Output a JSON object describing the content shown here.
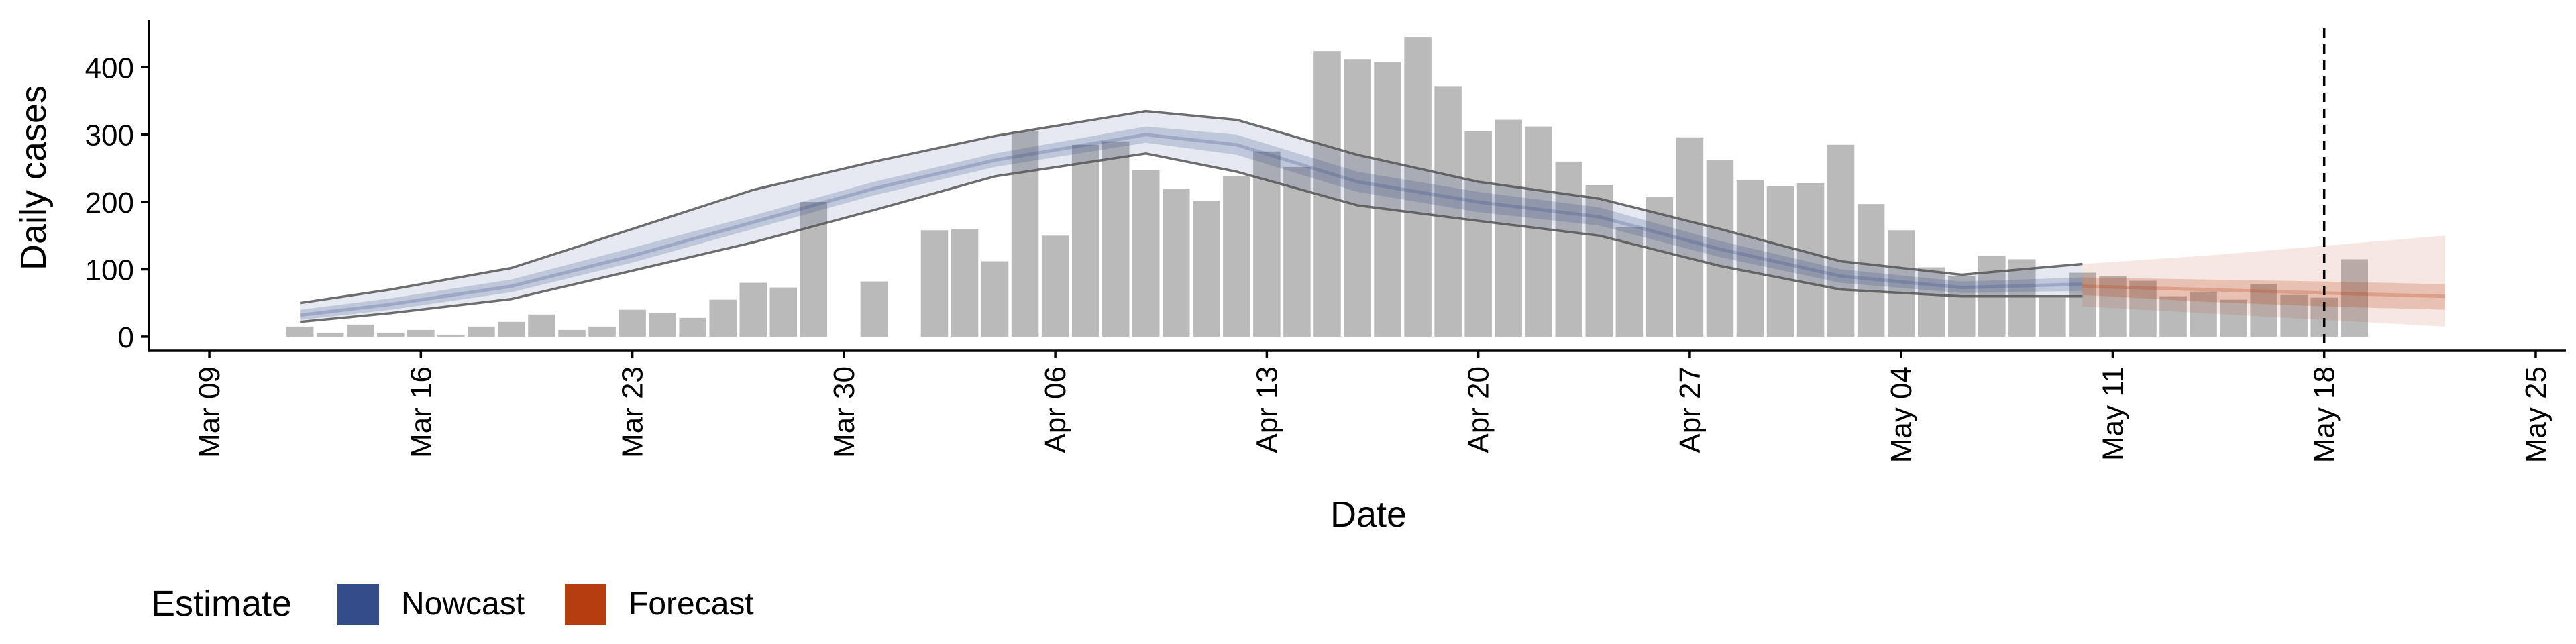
{
  "chart_data": {
    "type": "bar",
    "xlabel": "Date",
    "ylabel": "Daily cases",
    "ylim": [
      -20,
      470
    ],
    "xlim": [
      "2020-03-07",
      "2020-05-26"
    ],
    "y_ticks": [
      0,
      100,
      200,
      300,
      400
    ],
    "x_ticks": [
      {
        "date": "2020-03-09",
        "label": "Mar 09"
      },
      {
        "date": "2020-03-16",
        "label": "Mar 16"
      },
      {
        "date": "2020-03-23",
        "label": "Mar 23"
      },
      {
        "date": "2020-03-30",
        "label": "Mar 30"
      },
      {
        "date": "2020-04-06",
        "label": "Apr 06"
      },
      {
        "date": "2020-04-13",
        "label": "Apr 13"
      },
      {
        "date": "2020-04-20",
        "label": "Apr 20"
      },
      {
        "date": "2020-04-27",
        "label": "Apr 27"
      },
      {
        "date": "2020-05-04",
        "label": "May 04"
      },
      {
        "date": "2020-05-11",
        "label": "May 11"
      },
      {
        "date": "2020-05-18",
        "label": "May 18"
      },
      {
        "date": "2020-05-25",
        "label": "May 25"
      }
    ],
    "grid": false,
    "legend": {
      "title": "Estimate",
      "position": "bottom-left",
      "items": [
        {
          "label": "Nowcast",
          "color": "#354c8a"
        },
        {
          "label": "Forecast",
          "color": "#b53d0f"
        }
      ]
    },
    "reference_line_date": "2020-05-18",
    "bar_color": "#bababa",
    "bars": {
      "start_date": "2020-03-12",
      "values": [
        15,
        6,
        18,
        6,
        10,
        3,
        15,
        22,
        33,
        10,
        15,
        40,
        35,
        28,
        55,
        80,
        73,
        200,
        0,
        82,
        0,
        158,
        160,
        112,
        305,
        150,
        285,
        290,
        247,
        220,
        202,
        238,
        275,
        252,
        424,
        412,
        408,
        445,
        372,
        305,
        322,
        312,
        260,
        225,
        163,
        207,
        296,
        262,
        233,
        223,
        228,
        285,
        197,
        158,
        103,
        90,
        120,
        115,
        58,
        95,
        90,
        83,
        60,
        67,
        55,
        78,
        62,
        58,
        115
      ]
    },
    "nowcast": {
      "color": "#354c8a",
      "x": [
        "2020-03-12",
        "2020-03-15",
        "2020-03-19",
        "2020-03-23",
        "2020-03-27",
        "2020-03-31",
        "2020-04-04",
        "2020-04-09",
        "2020-04-12",
        "2020-04-16",
        "2020-04-20",
        "2020-04-24",
        "2020-04-28",
        "2020-05-02",
        "2020-05-06",
        "2020-05-10"
      ],
      "median": [
        32,
        48,
        75,
        120,
        170,
        220,
        262,
        300,
        285,
        230,
        200,
        178,
        130,
        90,
        73,
        78
      ],
      "inner_lower": [
        25,
        40,
        66,
        110,
        160,
        210,
        252,
        288,
        270,
        215,
        185,
        165,
        118,
        80,
        65,
        68
      ],
      "inner_upper": [
        40,
        57,
        85,
        132,
        180,
        230,
        272,
        312,
        300,
        245,
        215,
        192,
        142,
        100,
        82,
        88
      ],
      "outer_lower": [
        22,
        35,
        56,
        98,
        140,
        188,
        238,
        272,
        245,
        195,
        172,
        150,
        105,
        70,
        60,
        60
      ],
      "outer_upper": [
        50,
        70,
        102,
        160,
        218,
        260,
        298,
        335,
        322,
        270,
        230,
        205,
        160,
        112,
        92,
        108
      ]
    },
    "forecast": {
      "color": "#b53d0f",
      "x": [
        "2020-05-10",
        "2020-05-14",
        "2020-05-18",
        "2020-05-22"
      ],
      "median": [
        75,
        70,
        65,
        60
      ],
      "inner_lower": [
        62,
        52,
        45,
        40
      ],
      "inner_upper": [
        88,
        85,
        82,
        78
      ],
      "outer_lower": [
        45,
        35,
        25,
        15
      ],
      "outer_upper": [
        108,
        120,
        135,
        150
      ]
    }
  }
}
